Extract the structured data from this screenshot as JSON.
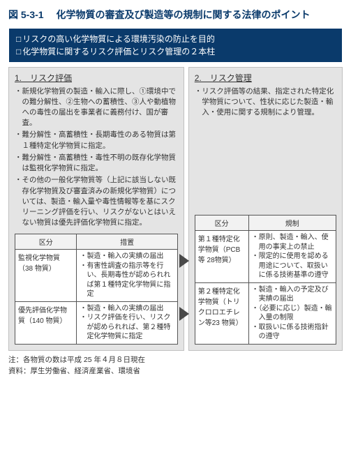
{
  "figure": {
    "label": "図 5-3-1",
    "title": "化学物質の審査及び製造等の規制に関する法律のポイント"
  },
  "purpose": {
    "line1": "リスクの高い化学物質による環境汚染の防止を目的",
    "line2": "化学物質に関するリスク評価とリスク管理の２本柱"
  },
  "assessment": {
    "heading": "1.　リスク評価",
    "b1": "新規化学物質の製造・輸入に際し、①環境中での難分解性、②生物への蓄積性、③人や動植物への毒性の届出を事業者に義務付け、国が審査。",
    "b2": "難分解性・高蓄積性・長期毒性のある物質は第１種特定化学物質に指定。",
    "b3": "難分解性・高蓄積性・毒性不明の既存化学物質は監視化学物質に指定。",
    "b4": "その他の一般化学物質等（上記に該当しない既存化学物質及び審査済みの新規化学物質）については、製造・輸入量や毒性情報等を基にスクリーニング評価を行い、リスクがないとはいえない物質は優先評価化学物質に指定。",
    "table": {
      "h1": "区分",
      "h2": "措置",
      "r1cat": "監視化学物質（38 物質）",
      "r1m1": "製造・輸入の実績の届出",
      "r1m2": "有害性調査の指示等を行い、長期毒性が認められれば第１種特定化学物質に指定",
      "r2cat": "優先評価化学物質（140 物質）",
      "r2m1": "製造・輸入の実績の届出",
      "r2m2": "リスク評価を行い、リスクが認められれば、第２種特定化学物質に指定"
    }
  },
  "management": {
    "heading": "2.　リスク管理",
    "b1": "リスク評価等の結果、指定された特定化学物質について、性状に応じた製造・輸入・使用に関する規制により管理。",
    "table": {
      "h1": "区分",
      "h2": "規制",
      "r1cat": "第１種特定化学物質（PCB 等 28物質）",
      "r1m1": "原則、製造・輸入、使用の事実上の禁止",
      "r1m2": "限定的に使用を認める用途について、取扱いに係る技術基準の遵守",
      "r2cat": "第２種特定化学物質（トリクロロエチレン等23 物質）",
      "r2m1": "製造・輸入の予定及び実績の届出",
      "r2m2": "（必要に応じ）製造・輸入量の制限",
      "r2m3": "取扱いに係る技術指針の遵守"
    }
  },
  "notes": {
    "n1": "注：各物質の数は平成 25 年４月８日現在",
    "n2": "資料：厚生労働省、経済産業省、環境省"
  },
  "colors": {
    "heading_blue": "#0a3a6b",
    "panel_gray": "#e4e4e4",
    "arrow_gray": "#4a4a4a"
  }
}
